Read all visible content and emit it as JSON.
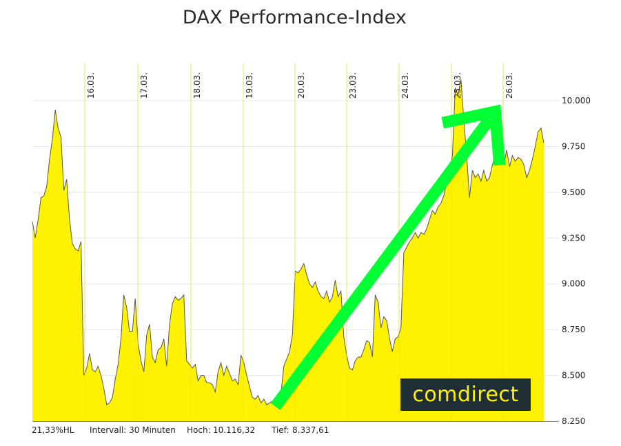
{
  "title": "DAX Performance-Index",
  "chart_data": {
    "type": "area",
    "title": "DAX Performance-Index",
    "x_tick_labels": [
      "16.03.",
      "17.03.",
      "18.03.",
      "19.03.",
      "20.03.",
      "23.03.",
      "24.03.",
      "25.03.",
      "26.03."
    ],
    "y_tick_labels": [
      "8.250",
      "8.500",
      "8.750",
      "9.000",
      "9.250",
      "9.500",
      "9.750",
      "10.000"
    ],
    "y_ticks": [
      8250,
      8500,
      8750,
      9000,
      9250,
      9500,
      9750,
      10000
    ],
    "ylim": [
      8250,
      10250
    ],
    "grid": true,
    "fill_color": "#fff200",
    "line_color": "#555555",
    "series": [
      {
        "values": [
          9340,
          9250,
          9350,
          9470,
          9480,
          9530,
          9680,
          9790,
          9950,
          9850,
          9800,
          9510,
          9570,
          9350,
          9220,
          9190,
          9180,
          9230,
          8500,
          8540,
          8620,
          8530,
          8520,
          8550,
          8500,
          8430,
          8340,
          8350,
          8380,
          8480,
          8560,
          8700,
          8940,
          8870,
          8740,
          8740,
          8920,
          8670,
          8580,
          8520,
          8720,
          8780,
          8600,
          8570,
          8640,
          8650,
          8700,
          8550,
          8780,
          8890,
          8930,
          8910,
          8920,
          8940,
          8580,
          8560,
          8540,
          8560,
          8470,
          8500,
          8500,
          8460,
          8460,
          8450,
          8410,
          8520,
          8570,
          8500,
          8550,
          8510,
          8470,
          8480,
          8450,
          8610,
          8570,
          8500,
          8440,
          8380,
          8370,
          8390,
          8350,
          8370,
          8340,
          8350,
          8360,
          8350,
          8370,
          8400,
          8550,
          8590,
          8630,
          8720,
          9070,
          9060,
          9080,
          9110,
          9050,
          9000,
          8980,
          9010,
          8960,
          8930,
          8920,
          8960,
          8900,
          8930,
          9020,
          8930,
          8960,
          8710,
          8610,
          8540,
          8530,
          8580,
          8600,
          8600,
          8640,
          8690,
          8680,
          8600,
          8940,
          8900,
          8760,
          8820,
          8800,
          8700,
          8630,
          8700,
          8710,
          8760,
          9170,
          9200,
          9230,
          9250,
          9280,
          9250,
          9280,
          9270,
          9300,
          9350,
          9400,
          9380,
          9420,
          9440,
          9480,
          9560,
          9600,
          9700,
          10070,
          10030,
          10116,
          9900,
          9700,
          9470,
          9620,
          9580,
          9600,
          9560,
          9620,
          9560,
          9580,
          9650,
          9700,
          9710,
          9870,
          9650,
          9730,
          9640,
          9700,
          9670,
          9690,
          9680,
          9650,
          9580,
          9620,
          9680,
          9750,
          9830,
          9850,
          9770
        ]
      }
    ],
    "annotation": {
      "type": "arrow",
      "color": "#00ff33",
      "from": [
        0.475,
        8330
      ],
      "to": [
        0.905,
        9940
      ]
    }
  },
  "footer": {
    "range_label": "21,33%HL",
    "interval_label": "Intervall: 30 Minuten",
    "high_label": "Hoch:",
    "high_value": "10.116,32",
    "low_label": "Tief:",
    "low_value": "8.337,61"
  },
  "logo_text": "comdirect"
}
